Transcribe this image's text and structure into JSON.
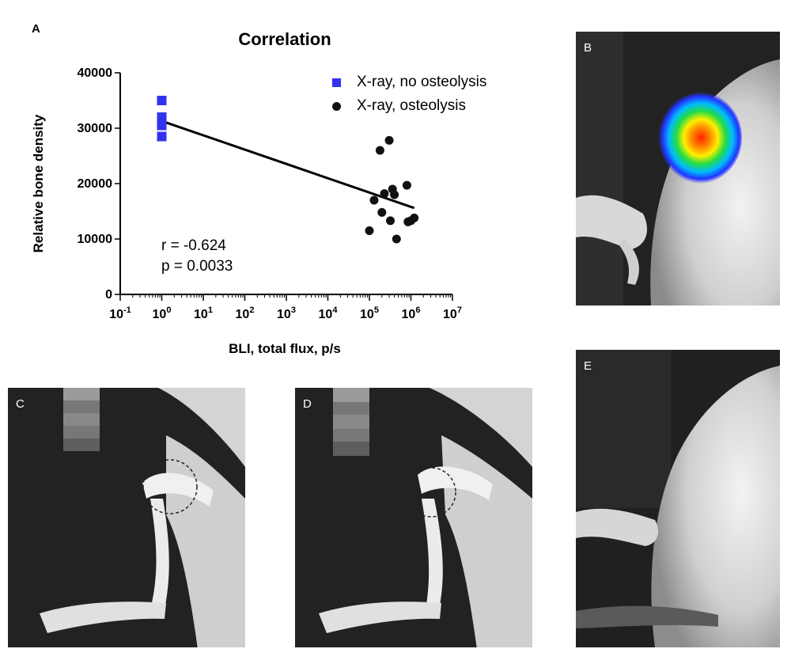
{
  "panels": {
    "A": "A",
    "B": "B",
    "C": "C",
    "D": "D",
    "E": "E"
  },
  "colors": {
    "series_no_osteolysis": "#3333ee",
    "series_osteolysis": "#111111",
    "regression_line": "#000000"
  },
  "stats": {
    "r": "r = -0.624",
    "p": "p = 0.0033"
  },
  "chart_data": {
    "type": "scatter",
    "title": "Correlation",
    "xlabel": "BLI, total flux, p/s",
    "ylabel": "Relative bone density",
    "x_scale": "log",
    "xlim": [
      0.1,
      10000000
    ],
    "ylim": [
      0,
      40000
    ],
    "x_tick_labels": [
      {
        "base": "10",
        "exp": "-1"
      },
      {
        "base": "10",
        "exp": "0"
      },
      {
        "base": "10",
        "exp": "1"
      },
      {
        "base": "10",
        "exp": "2"
      },
      {
        "base": "10",
        "exp": "3"
      },
      {
        "base": "10",
        "exp": "4"
      },
      {
        "base": "10",
        "exp": "5"
      },
      {
        "base": "10",
        "exp": "6"
      },
      {
        "base": "10",
        "exp": "7"
      }
    ],
    "x_tick_values": [
      0.1,
      1,
      10,
      100,
      1000,
      10000,
      100000,
      1000000,
      10000000
    ],
    "y_ticks": [
      0,
      10000,
      20000,
      30000,
      40000
    ],
    "y_tick_labels": [
      "0",
      "10000",
      "20000",
      "30000",
      "40000"
    ],
    "legend_position": "top-right",
    "grid": false,
    "series": [
      {
        "name": "X-ray, no osteolysis",
        "marker": "square",
        "points": [
          {
            "x": 1,
            "y": 35000
          },
          {
            "x": 1,
            "y": 32000
          },
          {
            "x": 1,
            "y": 30500
          },
          {
            "x": 1,
            "y": 28500
          }
        ]
      },
      {
        "name": "X-ray, osteolysis",
        "marker": "circle",
        "points": [
          {
            "x": 180000,
            "y": 26000
          },
          {
            "x": 300000,
            "y": 27800
          },
          {
            "x": 130000,
            "y": 17000
          },
          {
            "x": 230000,
            "y": 18200
          },
          {
            "x": 360000,
            "y": 19000
          },
          {
            "x": 400000,
            "y": 18000
          },
          {
            "x": 800000,
            "y": 19700
          },
          {
            "x": 200000,
            "y": 14800
          },
          {
            "x": 320000,
            "y": 13300
          },
          {
            "x": 850000,
            "y": 13100
          },
          {
            "x": 1000000,
            "y": 13300
          },
          {
            "x": 1200000,
            "y": 13800
          },
          {
            "x": 100000,
            "y": 11500
          },
          {
            "x": 450000,
            "y": 10000
          }
        ]
      }
    ],
    "regression": {
      "x_from": 1,
      "y_from": 31300,
      "x_to": 1200000,
      "y_to": 15600
    }
  }
}
